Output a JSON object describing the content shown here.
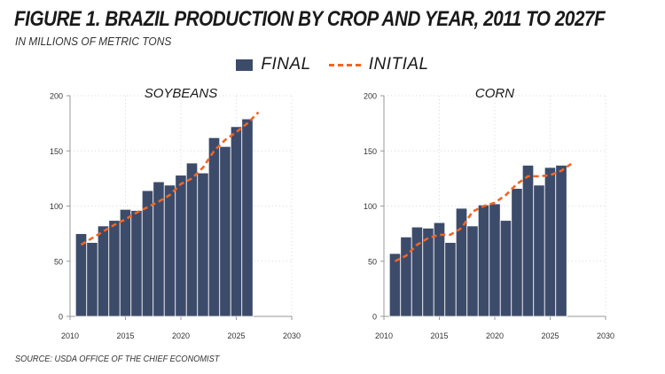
{
  "title": "FIGURE 1. BRAZIL PRODUCTION BY CROP AND YEAR, 2011 TO 2027F",
  "subtitle": "IN MILLIONS OF METRIC TONS",
  "source": "SOURCE: USDA OFFICE OF THE CHIEF ECONOMIST",
  "legend": {
    "final_label": "FINAL",
    "initial_label": "INITIAL"
  },
  "colors": {
    "final": "#3d4b6b",
    "initial": "#f26522",
    "grid": "#d9d9d9",
    "axis": "#999999"
  },
  "chart_data": [
    {
      "type": "bar",
      "title": "SOYBEANS",
      "xlim": [
        2010,
        2030
      ],
      "ylim": [
        0,
        200
      ],
      "xticks": [
        "2010",
        "2015",
        "2020",
        "2025",
        "2030"
      ],
      "yticks": [
        "0",
        "50",
        "100",
        "150",
        "200"
      ],
      "grid": true,
      "x": [
        2011,
        2012,
        2013,
        2014,
        2015,
        2016,
        2017,
        2018,
        2019,
        2020,
        2021,
        2022,
        2023,
        2024,
        2025,
        2026
      ],
      "series": [
        {
          "name": "FINAL",
          "type": "bar",
          "values": [
            75,
            67,
            82,
            87,
            97,
            96,
            114,
            122,
            119,
            128,
            139,
            130,
            162,
            154,
            172,
            179
          ]
        },
        {
          "name": "INITIAL",
          "type": "line",
          "x": [
            2011,
            2012,
            2013,
            2014,
            2015,
            2016,
            2017,
            2018,
            2019,
            2020,
            2021,
            2022,
            2023,
            2024,
            2025,
            2026,
            2027
          ],
          "values": [
            65,
            71,
            77,
            83,
            88,
            94,
            99,
            104,
            110,
            120,
            125,
            135,
            150,
            160,
            167,
            175,
            185
          ]
        }
      ]
    },
    {
      "type": "bar",
      "title": "CORN",
      "xlim": [
        2010,
        2030
      ],
      "ylim": [
        0,
        200
      ],
      "xticks": [
        "2010",
        "2015",
        "2020",
        "2025",
        "2030"
      ],
      "yticks": [
        "0",
        "50",
        "100",
        "150",
        "200"
      ],
      "grid": true,
      "x": [
        2011,
        2012,
        2013,
        2014,
        2015,
        2016,
        2017,
        2018,
        2019,
        2020,
        2021,
        2022,
        2023,
        2024,
        2025,
        2026
      ],
      "series": [
        {
          "name": "FINAL",
          "type": "bar",
          "values": [
            57,
            72,
            81,
            80,
            85,
            67,
            98,
            82,
            101,
            102,
            87,
            116,
            137,
            119,
            135,
            137
          ]
        },
        {
          "name": "INITIAL",
          "type": "line",
          "x": [
            2011,
            2012,
            2013,
            2014,
            2015,
            2016,
            2017,
            2018,
            2019,
            2020,
            2021,
            2022,
            2023,
            2024,
            2025,
            2026,
            2027
          ],
          "values": [
            50,
            55,
            65,
            71,
            74,
            74,
            80,
            95,
            100,
            103,
            110,
            120,
            127,
            127,
            128,
            132,
            139
          ]
        }
      ]
    }
  ]
}
